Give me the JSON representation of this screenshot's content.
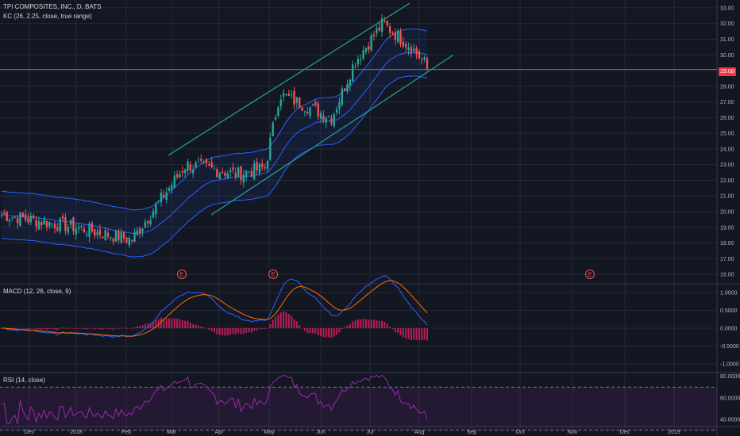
{
  "legend": {
    "main": "TPI COMPOSITES, INC., D, BATS",
    "kc": "KC (26, 2.25, close, true range)",
    "macd": "MACD (12, 26, close, 9)",
    "rsi": "RSI (14, close)"
  },
  "last_price_label": "29.08",
  "colors": {
    "background": "#131722",
    "grid": "#252a37",
    "up": "#26a69a",
    "down": "#ef5350",
    "keltner": "#2962ff",
    "trendline": "#26a69a",
    "macd_line": "#2962ff",
    "signal_line": "#ff6d00",
    "histogram": "#e91e63",
    "rsi": "#9c27b0",
    "price_line": "#f23645"
  },
  "chart_data": [
    {
      "type": "candlestick",
      "title": "TPI COMPOSITES, INC., D, BATS",
      "x_ticks": [
        "Dec",
        "2018",
        "Feb",
        "Mar",
        "Apr",
        "May",
        "Jun",
        "Jul",
        "Aug",
        "Sep",
        "Oct",
        "Nov",
        "Dec",
        "2019"
      ],
      "ylim": [
        15.5,
        33.3
      ],
      "y_ticks": [
        "16.00",
        "17.00",
        "18.00",
        "19.00",
        "20.00",
        "21.00",
        "22.00",
        "23.00",
        "24.00",
        "25.00",
        "26.00",
        "27.00",
        "28.00",
        "29.00",
        "30.00",
        "31.00",
        "32.00",
        "33.00"
      ],
      "last_price": 29.08,
      "close_path": [
        [
          "Dec",
          19.8
        ],
        [
          "2018",
          19.0
        ],
        [
          "Feb",
          18.2
        ],
        [
          "Mar",
          20.6
        ],
        [
          "Mar",
          23.0
        ],
        [
          "Apr",
          22.4
        ],
        [
          "May",
          22.8
        ],
        [
          "May",
          27.5
        ],
        [
          "Jun",
          26.0
        ],
        [
          "Jul",
          29.5
        ],
        [
          "Jul",
          32.0
        ],
        [
          "Aug",
          30.5
        ],
        [
          "Aug",
          29.08
        ]
      ],
      "overlays": [
        "Keltner Channel upper",
        "Keltner Channel basis",
        "Keltner Channel lower"
      ],
      "trend_channel": [
        "upper trendline",
        "lower trendline"
      ],
      "earnings_markers": [
        "E",
        "E",
        "E"
      ]
    },
    {
      "type": "line",
      "title": "MACD (12, 26, close, 9)",
      "ylim": [
        -1.2,
        1.2
      ],
      "y_ticks": [
        "1.0000",
        "0.5000",
        "0.0000",
        "-0.5000",
        "-1.0000"
      ],
      "series": [
        "MACD line",
        "signal line",
        "histogram"
      ]
    },
    {
      "type": "line",
      "title": "RSI (14, close)",
      "ylim": [
        35,
        82
      ],
      "y_ticks": [
        "80.0000",
        "60.0000",
        "40.0000"
      ],
      "bands": [
        70,
        30
      ]
    }
  ]
}
